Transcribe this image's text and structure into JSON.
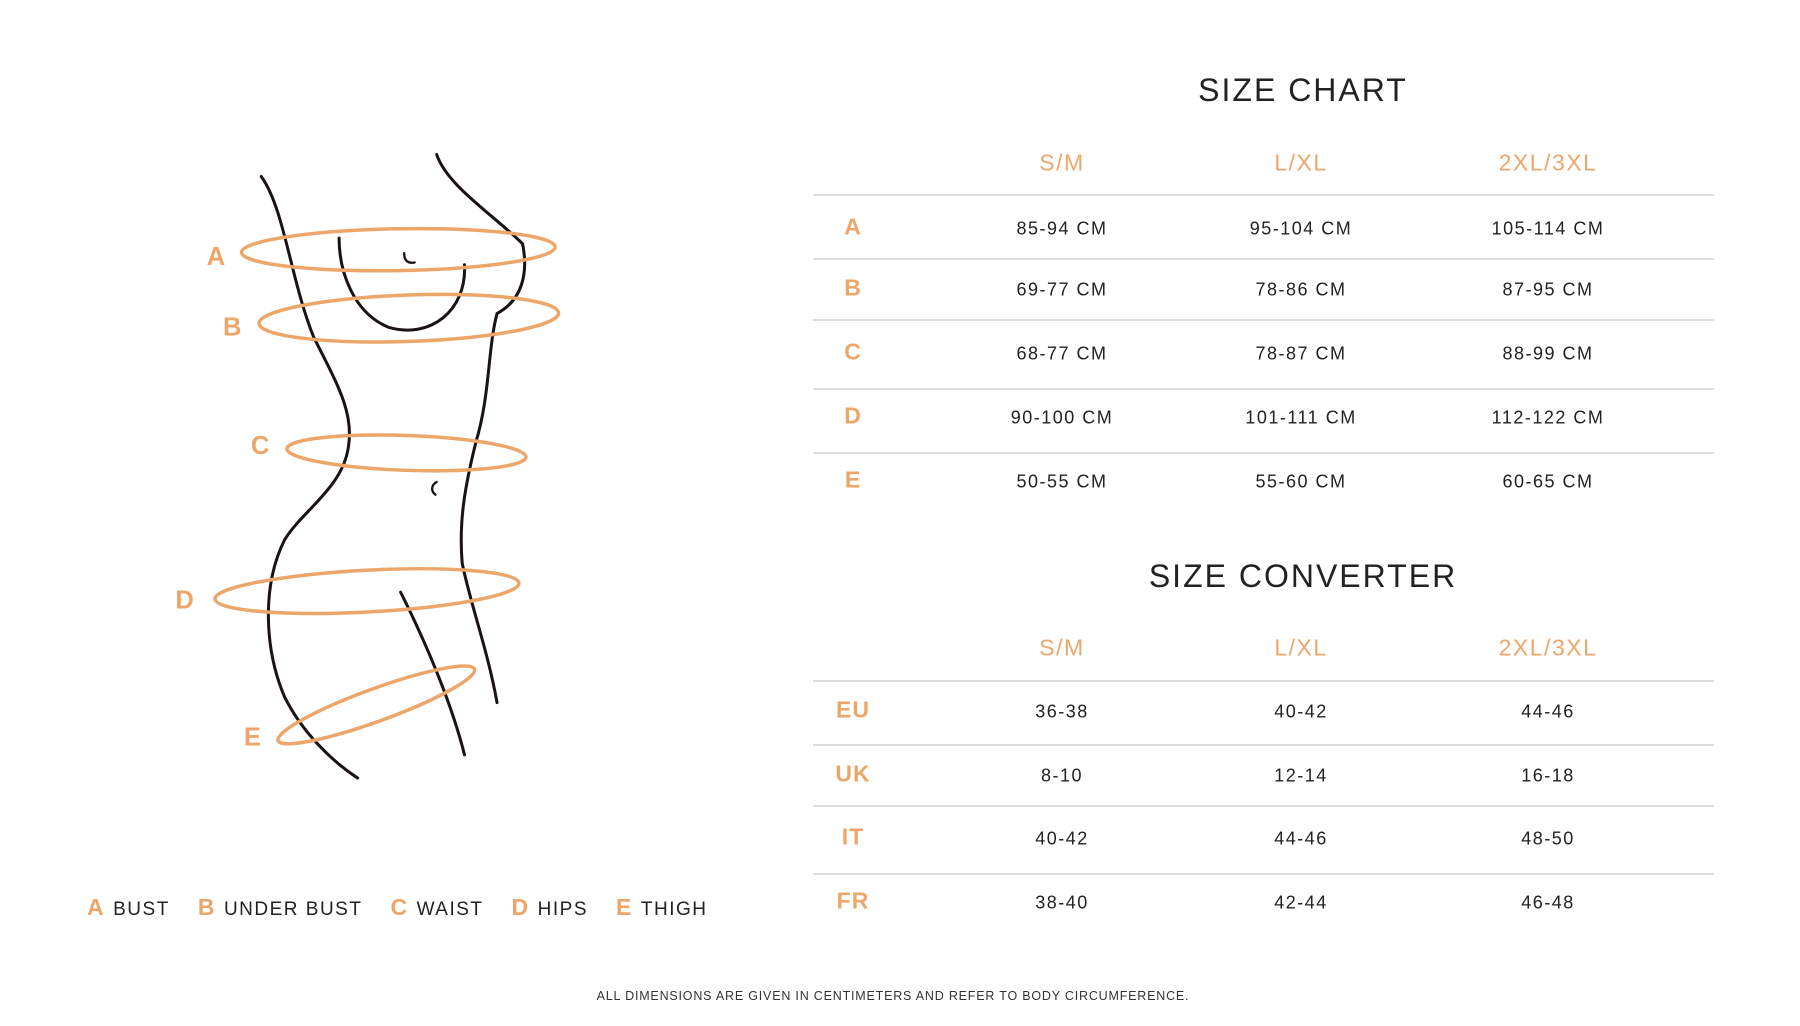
{
  "accent_color": "#eda66a",
  "figure": {
    "labels": [
      "A",
      "B",
      "C",
      "D",
      "E"
    ]
  },
  "size_chart": {
    "title": "SIZE CHART",
    "columns": [
      "S/M",
      "L/XL",
      "2XL/3XL"
    ],
    "rows": [
      {
        "label": "A",
        "values": [
          "85-94 CM",
          "95-104 CM",
          "105-114 CM"
        ]
      },
      {
        "label": "B",
        "values": [
          "69-77 CM",
          "78-86 CM",
          "87-95 CM"
        ]
      },
      {
        "label": "C",
        "values": [
          "68-77 CM",
          "78-87 CM",
          "88-99 CM"
        ]
      },
      {
        "label": "D",
        "values": [
          "90-100 CM",
          "101-111 CM",
          "112-122 CM"
        ]
      },
      {
        "label": "E",
        "values": [
          "50-55 CM",
          "55-60 CM",
          "60-65 CM"
        ]
      }
    ]
  },
  "size_converter": {
    "title": "SIZE CONVERTER",
    "columns": [
      "S/M",
      "L/XL",
      "2XL/3XL"
    ],
    "rows": [
      {
        "label": "EU",
        "values": [
          "36-38",
          "40-42",
          "44-46"
        ]
      },
      {
        "label": "UK",
        "values": [
          "8-10",
          "12-14",
          "16-18"
        ]
      },
      {
        "label": "IT",
        "values": [
          "40-42",
          "44-46",
          "48-50"
        ]
      },
      {
        "label": "FR",
        "values": [
          "38-40",
          "42-44",
          "46-48"
        ]
      }
    ]
  },
  "legend": [
    {
      "key": "A",
      "label": "BUST"
    },
    {
      "key": "B",
      "label": "UNDER BUST"
    },
    {
      "key": "C",
      "label": "WAIST"
    },
    {
      "key": "D",
      "label": "HIPS"
    },
    {
      "key": "E",
      "label": "THIGH"
    }
  ],
  "footer": "ALL DIMENSIONS ARE GIVEN IN CENTIMETERS AND REFER TO BODY CIRCUMFERENCE."
}
